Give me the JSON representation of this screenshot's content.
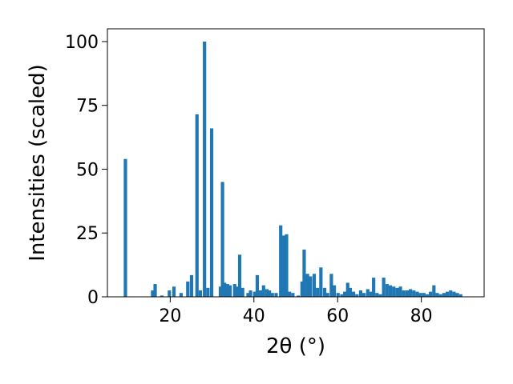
{
  "chart_data": {
    "type": "bar",
    "xlabel": "2θ (°)",
    "ylabel": "Intensities (scaled)",
    "xlim": [
      5,
      95
    ],
    "ylim": [
      0,
      105
    ],
    "x_ticks": [
      20,
      40,
      60,
      80
    ],
    "y_ticks": [
      0,
      25,
      50,
      75,
      100
    ],
    "grid": false,
    "bar_color": "#1f77b4",
    "bar_width": 0.8,
    "x": [
      9.3,
      15.8,
      16.4,
      18.0,
      19.8,
      20.9,
      22.6,
      24.2,
      25.1,
      26.4,
      27.2,
      28.2,
      29.0,
      29.9,
      32.0,
      32.5,
      33.0,
      33.7,
      34.3,
      35.4,
      36.0,
      36.6,
      37.3,
      38.6,
      39.2,
      40.2,
      40.8,
      41.6,
      42.3,
      43.1,
      43.7,
      44.4,
      45.3,
      46.4,
      47.1,
      47.8,
      48.5,
      49.3,
      50.6,
      51.5,
      52.0,
      52.8,
      53.5,
      54.4,
      55.2,
      56.0,
      56.9,
      57.6,
      58.5,
      59.2,
      60.1,
      61.0,
      61.7,
      62.4,
      63.0,
      63.8,
      64.6,
      65.5,
      66.3,
      67.2,
      68.0,
      68.6,
      69.4,
      70.2,
      71.0,
      71.8,
      72.6,
      73.4,
      74.2,
      75.0,
      75.8,
      76.6,
      77.4,
      78.2,
      79.0,
      79.8,
      80.6,
      81.4,
      82.2,
      83.0,
      83.8,
      84.6,
      85.4,
      86.2,
      87.0,
      87.8,
      88.6,
      89.4
    ],
    "values": [
      54,
      2.5,
      5,
      0.5,
      2.5,
      4,
      1.5,
      6,
      8.5,
      71.5,
      2.5,
      100,
      3.5,
      66,
      4,
      45,
      5.5,
      5,
      4.5,
      5,
      4,
      16.5,
      3.5,
      1.5,
      2.5,
      2,
      8.5,
      2.5,
      4.5,
      3,
      2.5,
      1.5,
      1.5,
      28,
      24,
      24.5,
      2,
      1.5,
      0.5,
      6,
      18.5,
      9,
      8,
      9,
      3.5,
      11.5,
      3.5,
      1.5,
      9,
      4.5,
      1.5,
      1,
      2,
      5.5,
      3.5,
      2,
      1,
      2.5,
      1.5,
      3,
      2,
      7.5,
      1.5,
      1,
      7.5,
      5,
      4.5,
      4,
      3.5,
      4,
      2.5,
      2.5,
      3,
      2.5,
      2,
      1.5,
      1.5,
      1,
      2,
      4.5,
      1.5,
      1,
      1.5,
      2,
      2.5,
      2,
      1.5,
      1
    ]
  }
}
